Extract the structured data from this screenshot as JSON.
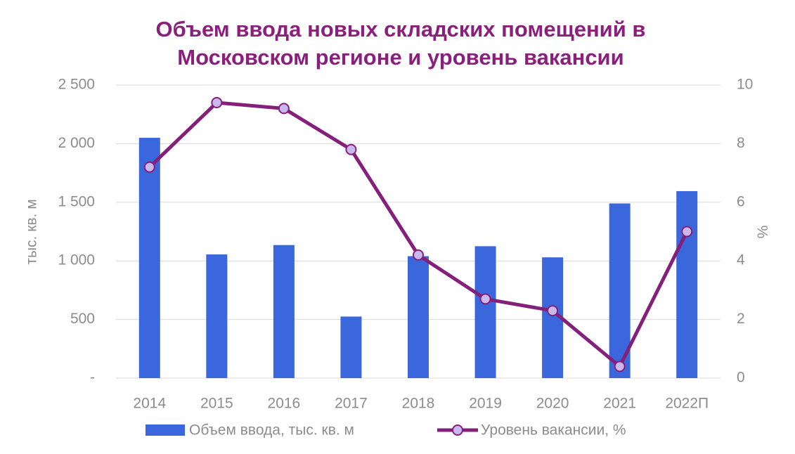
{
  "chart_data": {
    "type": "bar",
    "title": "Объем ввода новых складских помещений в Московском регионе и уровень вакансии",
    "categories": [
      "2014",
      "2015",
      "2016",
      "2017",
      "2018",
      "2019",
      "2020",
      "2021",
      "2022П"
    ],
    "series": [
      {
        "name": "Объем ввода, тыс. кв. м",
        "type": "bar",
        "color": "#3a67dc",
        "values": [
          2050,
          1055,
          1135,
          525,
          1040,
          1125,
          1030,
          1490,
          1595
        ]
      },
      {
        "name": "Уровень вакансии, %",
        "type": "line",
        "axis": "y2",
        "color": "#85207a",
        "marker_color": "#c9b8ec",
        "values": [
          7.2,
          9.4,
          9.2,
          7.8,
          4.2,
          2.7,
          2.3,
          0.4,
          5.0
        ]
      }
    ],
    "y_label": "тыс. кв. м",
    "y2_label": "%",
    "ylim": [
      0,
      2500
    ],
    "yticks": [
      {
        "value": 0,
        "label": "-"
      },
      500,
      {
        "value": 1000,
        "label": "1 000"
      },
      {
        "value": 1500,
        "label": "1 500"
      },
      {
        "value": 2000,
        "label": "2 000"
      },
      {
        "value": 2500,
        "label": "2 500"
      }
    ],
    "y2lim": [
      0,
      10
    ],
    "y2ticks": [
      0,
      2,
      4,
      6,
      8,
      10
    ],
    "grid": true
  }
}
